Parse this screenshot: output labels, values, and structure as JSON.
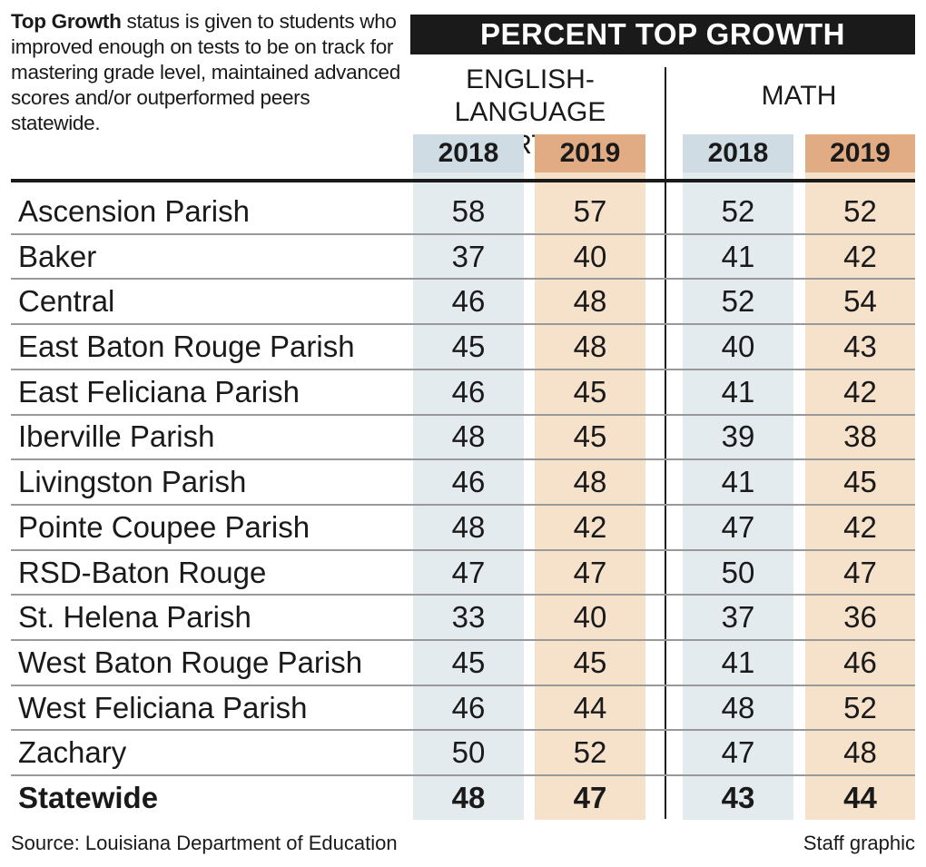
{
  "intro": {
    "bold": "Top Growth",
    "text": " status is given to students who improved enough on tests to be on track for mastering grade level, maintained advanced scores and/or outperformed peers statewide."
  },
  "chart_data": {
    "type": "table",
    "title": "PERCENT TOP GROWTH",
    "groups": [
      {
        "name_lines": [
          "ENGLISH-",
          "LANGUAGE ARTS"
        ],
        "columns": [
          "2018",
          "2019"
        ]
      },
      {
        "name_lines": [
          "MATH"
        ],
        "columns": [
          "2018",
          "2019"
        ]
      }
    ],
    "rows": [
      {
        "label": "Ascension Parish",
        "values": [
          58,
          57,
          52,
          52
        ]
      },
      {
        "label": "Baker",
        "values": [
          37,
          40,
          41,
          42
        ]
      },
      {
        "label": "Central",
        "values": [
          46,
          48,
          52,
          54
        ]
      },
      {
        "label": "East Baton Rouge Parish",
        "values": [
          45,
          48,
          40,
          43
        ]
      },
      {
        "label": "East Feliciana Parish",
        "values": [
          46,
          45,
          41,
          42
        ]
      },
      {
        "label": "Iberville Parish",
        "values": [
          48,
          45,
          39,
          38
        ]
      },
      {
        "label": "Livingston Parish",
        "values": [
          46,
          48,
          41,
          45
        ]
      },
      {
        "label": "Pointe Coupee Parish",
        "values": [
          48,
          42,
          47,
          42
        ]
      },
      {
        "label": "RSD-Baton Rouge",
        "values": [
          47,
          47,
          50,
          47
        ]
      },
      {
        "label": "St. Helena Parish",
        "values": [
          33,
          40,
          37,
          36
        ]
      },
      {
        "label": "West Baton Rouge Parish",
        "values": [
          45,
          45,
          41,
          46
        ]
      },
      {
        "label": "West Feliciana Parish",
        "values": [
          46,
          44,
          48,
          52
        ]
      },
      {
        "label": "Zachary",
        "values": [
          50,
          52,
          47,
          48
        ]
      },
      {
        "label": "Statewide",
        "values": [
          48,
          47,
          43,
          44
        ],
        "bold": true
      }
    ]
  },
  "colors": {
    "col_2018": "#e4ebef",
    "col_2019": "#f6e1cb",
    "head_2018": "#cfdce4",
    "head_2019": "#e1ac84",
    "banner": "#1a1a1a"
  },
  "footer": {
    "source": "Source: Louisiana Department of Education",
    "credit": "Staff graphic"
  }
}
